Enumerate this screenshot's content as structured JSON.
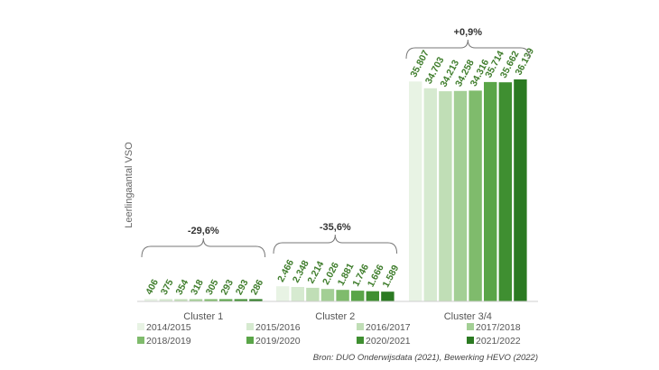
{
  "chart_data": {
    "type": "bar",
    "ylabel": "Leerlingaantal VSO",
    "categories": [
      "Cluster 1",
      "Cluster 2",
      "Cluster 3/4"
    ],
    "series": [
      {
        "name": "2014/2015",
        "color": "#e8f3e4",
        "values": [
          406,
          2466,
          35807
        ],
        "labels": [
          "406",
          "2.466",
          "35.807"
        ]
      },
      {
        "name": "2015/2016",
        "color": "#d6ead0",
        "values": [
          375,
          2348,
          34703
        ],
        "labels": [
          "375",
          "2.348",
          "34.703"
        ]
      },
      {
        "name": "2016/2017",
        "color": "#c0deb6",
        "values": [
          354,
          2214,
          34213
        ],
        "labels": [
          "354",
          "2.214",
          "34.213"
        ]
      },
      {
        "name": "2017/2018",
        "color": "#a3cf95",
        "values": [
          318,
          2026,
          34258
        ],
        "labels": [
          "318",
          "2.026",
          "34.258"
        ]
      },
      {
        "name": "2018/2019",
        "color": "#7fbb6c",
        "values": [
          305,
          1881,
          34316
        ],
        "labels": [
          "305",
          "1.881",
          "34.316"
        ]
      },
      {
        "name": "2019/2020",
        "color": "#5aa548",
        "values": [
          293,
          1746,
          35714
        ],
        "labels": [
          "293",
          "1.746",
          "35.714"
        ]
      },
      {
        "name": "2020/2021",
        "color": "#3f8f31",
        "values": [
          293,
          1666,
          35662
        ],
        "labels": [
          "293",
          "1.666",
          "35.662"
        ]
      },
      {
        "name": "2021/2022",
        "color": "#2b7a22",
        "values": [
          286,
          1589,
          36139
        ],
        "labels": [
          "286",
          "1.589",
          "36.139"
        ]
      }
    ],
    "annotations": [
      "-29,6%",
      "-35,6%",
      "+0,9%"
    ],
    "source": "Bron: DUO Onderwijsdata (2021), Bewerking HEVO (2022)",
    "legend_position": "bottom",
    "grid": false
  }
}
